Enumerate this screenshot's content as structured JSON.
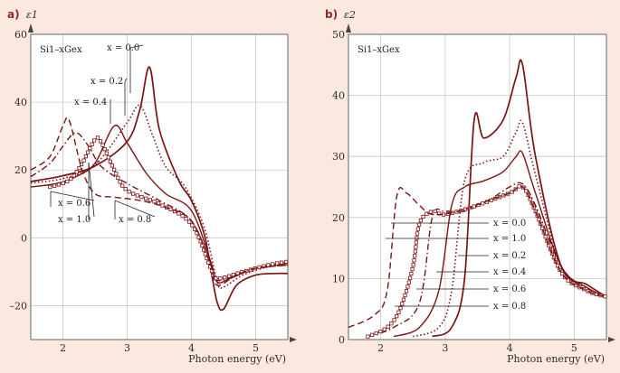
{
  "chart_data": [
    {
      "type": "line",
      "panel_label": "a)",
      "ylabel": "ε1",
      "xlabel": "Photon energy (eV)",
      "alloy_label": "Si1–xGex",
      "xlim": [
        1.5,
        5.5
      ],
      "ylim": [
        -30,
        60
      ],
      "xticks": [
        "2",
        "3",
        "4",
        "5"
      ],
      "yticks": [
        "60",
        "40",
        "20",
        "0",
        "–20"
      ],
      "series": [
        {
          "name": "x = 0.0",
          "style": "solid",
          "x": [
            1.5,
            2.0,
            2.5,
            3.0,
            3.2,
            3.35,
            3.5,
            3.8,
            4.0,
            4.2,
            4.3,
            4.4,
            4.5,
            4.7,
            5.0,
            5.3,
            5.5
          ],
          "y": [
            16.6,
            18.3,
            21.2,
            28.4,
            38.0,
            50.3,
            32.0,
            17.0,
            11.0,
            1.0,
            -9.0,
            -19.0,
            -21.0,
            -14.0,
            -11.0,
            -10.5,
            -10.5
          ]
        },
        {
          "name": "x = 0.2",
          "style": "dotted",
          "x": [
            1.5,
            2.0,
            2.5,
            3.0,
            3.2,
            3.4,
            3.6,
            3.9,
            4.2,
            4.4,
            4.5,
            4.8,
            5.2,
            5.5
          ],
          "y": [
            16.2,
            17.5,
            21.5,
            34.0,
            39.0,
            30.0,
            21.0,
            15.0,
            3.0,
            -13.0,
            -14.5,
            -11.0,
            -8.5,
            -8.0
          ]
        },
        {
          "name": "x = 0.4",
          "style": "solid",
          "x": [
            1.5,
            1.9,
            2.2,
            2.5,
            2.8,
            3.0,
            3.3,
            3.6,
            4.0,
            4.3,
            4.4,
            4.6,
            5.0,
            5.5
          ],
          "y": [
            15.0,
            16.0,
            18.0,
            22.0,
            33.0,
            28.0,
            19.0,
            13.0,
            8.0,
            -7.0,
            -13.0,
            -12.0,
            -9.0,
            -7.5
          ]
        },
        {
          "name": "x = 0.6",
          "style": "dashdot",
          "x": [
            1.5,
            1.8,
            2.0,
            2.2,
            2.4,
            2.6,
            3.0,
            3.5,
            4.0,
            4.3,
            4.4,
            4.7,
            5.0,
            5.5
          ],
          "y": [
            18.0,
            22.0,
            27.0,
            31.0,
            27.0,
            21.0,
            16.0,
            11.0,
            5.0,
            -8.0,
            -12.5,
            -11.0,
            -9.0,
            -8.0
          ]
        },
        {
          "name": "x = 0.8",
          "style": "squares",
          "x": [
            1.8,
            2.1,
            2.3,
            2.5,
            2.6,
            2.8,
            3.0,
            3.5,
            4.0,
            4.3,
            4.4,
            4.8,
            5.2,
            5.5
          ],
          "y": [
            15.0,
            17.0,
            22.0,
            29.0,
            28.0,
            20.0,
            14.0,
            10.0,
            4.0,
            -9.0,
            -12.0,
            -10.0,
            -8.0,
            -7.0
          ]
        },
        {
          "name": "x = 1.0",
          "style": "dashed",
          "x": [
            1.5,
            1.8,
            2.0,
            2.1,
            2.3,
            2.5,
            2.8,
            3.2,
            3.6,
            4.0,
            4.3,
            4.4,
            4.7,
            5.0,
            5.5
          ],
          "y": [
            20.0,
            24.0,
            33.0,
            34.5,
            20.0,
            13.0,
            12.0,
            11.0,
            9.0,
            5.0,
            -8.0,
            -14.0,
            -11.0,
            -9.0,
            -8.0
          ]
        }
      ],
      "annotations": [
        "x = 0.0",
        "x = 0.2",
        "x = 0.4",
        "x = 0.6",
        "x = 1.0",
        "x = 0.8"
      ]
    },
    {
      "type": "line",
      "panel_label": "b)",
      "ylabel": "ε2",
      "xlabel": "Photon energy (eV)",
      "alloy_label": "Si1–xGex",
      "xlim": [
        1.5,
        5.5
      ],
      "ylim": [
        0,
        50
      ],
      "xticks": [
        "2",
        "3",
        "4",
        "5"
      ],
      "yticks": [
        "50",
        "40",
        "30",
        "20",
        "10",
        "0"
      ],
      "series": [
        {
          "name": "x = 0.0",
          "style": "solid",
          "x": [
            2.8,
            3.1,
            3.3,
            3.45,
            3.6,
            3.9,
            4.1,
            4.2,
            4.4,
            4.8,
            5.2,
            5.5
          ],
          "y": [
            0.5,
            2.0,
            10.0,
            36.0,
            33.0,
            36.0,
            43.0,
            45.0,
            30.0,
            12.0,
            9.0,
            7.0
          ]
        },
        {
          "name": "x = 0.2",
          "style": "dotted",
          "x": [
            2.5,
            2.9,
            3.1,
            3.3,
            3.6,
            3.9,
            4.1,
            4.2,
            4.4,
            4.8,
            5.2,
            5.5
          ],
          "y": [
            0.5,
            2.0,
            8.0,
            26.0,
            29.0,
            30.0,
            34.0,
            35.5,
            27.0,
            12.0,
            8.5,
            7.0
          ]
        },
        {
          "name": "x = 0.4",
          "style": "solid",
          "x": [
            2.2,
            2.6,
            2.9,
            3.1,
            3.3,
            3.6,
            3.9,
            4.1,
            4.2,
            4.4,
            4.8,
            5.2,
            5.5
          ],
          "y": [
            0.5,
            2.0,
            8.0,
            22.0,
            25.0,
            26.0,
            27.5,
            30.0,
            30.5,
            24.0,
            12.0,
            8.5,
            7.0
          ]
        },
        {
          "name": "x = 0.6",
          "style": "dashdot",
          "x": [
            1.8,
            2.2,
            2.6,
            2.8,
            3.0,
            3.3,
            3.7,
            4.0,
            4.2,
            4.4,
            4.8,
            5.2,
            5.5
          ],
          "y": [
            0.5,
            2.0,
            6.0,
            20.0,
            21.0,
            21.0,
            23.0,
            25.0,
            25.5,
            22.0,
            12.0,
            8.0,
            7.0
          ]
        },
        {
          "name": "x = 0.8",
          "style": "squares",
          "x": [
            1.8,
            2.1,
            2.3,
            2.5,
            2.6,
            2.8,
            3.0,
            3.5,
            4.0,
            4.2,
            4.4,
            4.8,
            5.2,
            5.5
          ],
          "y": [
            0.5,
            2.0,
            5.0,
            12.0,
            19.0,
            21.0,
            20.5,
            22.0,
            24.0,
            25.0,
            21.0,
            11.0,
            8.0,
            7.0
          ]
        },
        {
          "name": "x = 1.0",
          "style": "dashed",
          "x": [
            1.5,
            1.9,
            2.1,
            2.25,
            2.4,
            2.6,
            2.8,
            3.2,
            3.6,
            4.0,
            4.2,
            4.4,
            4.8,
            5.2,
            5.5
          ],
          "y": [
            2.0,
            4.0,
            8.0,
            23.5,
            24.0,
            22.0,
            20.5,
            21.0,
            22.5,
            24.0,
            25.0,
            21.0,
            11.0,
            8.0,
            7.0
          ]
        }
      ],
      "annotations": [
        "x = 0.0",
        "x = 1.0",
        "x = 0.2",
        "x = 0.4",
        "x = 0.6",
        "x = 0.8"
      ]
    }
  ]
}
